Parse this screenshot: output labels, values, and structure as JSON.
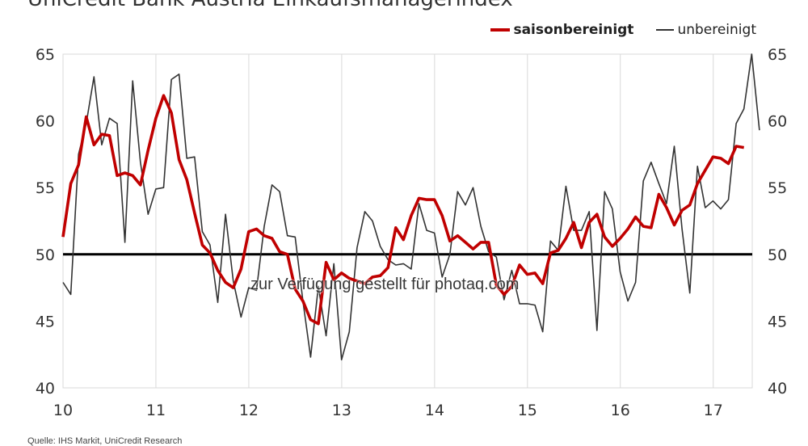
{
  "title": "UniCredit Bank Austria Einkaufsmanagerindex",
  "source": "Quelle: IHS Markit, UniCredit Research",
  "watermark": "zur Verfügung gestellt für photaq.com",
  "colors": {
    "seasonally_adjusted": "#c00000",
    "unadjusted": "#333333",
    "reference_line": "#000000",
    "grid": "#d9d9d9"
  },
  "chart_data": {
    "type": "line",
    "title": "UniCredit Bank Austria Einkaufsmanagerindex",
    "xlabel": "",
    "ylabel": "",
    "xlim": [
      10.0,
      17.42
    ],
    "ylim": [
      40,
      65
    ],
    "y_ticks": [
      40,
      45,
      50,
      55,
      60,
      65
    ],
    "x_ticks": [
      10,
      11,
      12,
      13,
      14,
      15,
      16,
      17
    ],
    "x_tick_labels": [
      "10",
      "11",
      "12",
      "13",
      "14",
      "15",
      "16",
      "17"
    ],
    "reference_line": 50,
    "grid": "vertical",
    "legend_position": "top-right",
    "x_start": 10.0,
    "x_step": 0.0833,
    "series": [
      {
        "name": "saisonbereinigt",
        "values": [
          51.3,
          55.3,
          56.7,
          60.3,
          58.2,
          59.0,
          58.9,
          55.9,
          56.1,
          55.9,
          55.2,
          57.8,
          60.2,
          61.9,
          60.6,
          57.1,
          55.6,
          53.1,
          50.7,
          50.1,
          48.8,
          47.9,
          47.5,
          48.9,
          51.7,
          51.9,
          51.4,
          51.2,
          50.2,
          50.0,
          47.4,
          46.5,
          45.1,
          44.8,
          49.4,
          48.1,
          48.6,
          48.2,
          48.0,
          47.8,
          48.3,
          48.4,
          49.0,
          52.0,
          51.1,
          52.9,
          54.2,
          54.1,
          54.1,
          52.9,
          51.0,
          51.4,
          50.9,
          50.4,
          50.9,
          50.9,
          47.7,
          47.0,
          47.6,
          49.2,
          48.5,
          48.6,
          47.8,
          50.1,
          50.3,
          51.2,
          52.4,
          50.5,
          52.4,
          53.0,
          51.3,
          50.6,
          51.2,
          51.9,
          52.8,
          52.1,
          52.0,
          54.5,
          53.5,
          52.2,
          53.3,
          53.7,
          55.3,
          56.3,
          57.3,
          57.2,
          56.8,
          58.1,
          58.0
        ]
      },
      {
        "name": "unbereinigt",
        "values": [
          47.9,
          47.0,
          57.5,
          59.8,
          63.3,
          58.2,
          60.2,
          59.8,
          50.9,
          63.0,
          56.9,
          53.0,
          54.9,
          55.0,
          63.1,
          63.5,
          57.2,
          57.3,
          51.7,
          50.7,
          46.4,
          53.0,
          48.0,
          45.3,
          47.5,
          47.3,
          52.1,
          55.2,
          54.7,
          51.4,
          51.3,
          46.5,
          42.3,
          47.6,
          43.9,
          49.3,
          42.1,
          44.2,
          50.5,
          53.2,
          52.5,
          50.6,
          49.6,
          49.2,
          49.3,
          48.9,
          53.8,
          51.8,
          51.6,
          48.3,
          50.0,
          54.7,
          53.7,
          55.0,
          52.1,
          50.2,
          49.8,
          46.6,
          48.8,
          46.3,
          46.3,
          46.2,
          44.2,
          51.0,
          50.3,
          55.1,
          51.8,
          51.8,
          53.2,
          44.3,
          54.7,
          53.4,
          48.7,
          46.5,
          47.9,
          55.5,
          56.9,
          55.3,
          53.8,
          58.1,
          51.9,
          47.1,
          56.6,
          53.5,
          54.0,
          53.4,
          54.1,
          59.8,
          60.9,
          65.0,
          59.3
        ]
      }
    ]
  }
}
